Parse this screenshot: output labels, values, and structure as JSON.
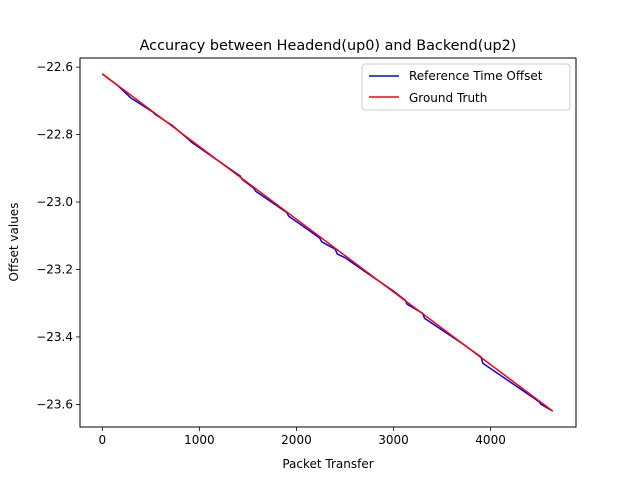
{
  "chart_data": {
    "type": "line",
    "title": "Accuracy between Headend(up0) and Backend(up2)",
    "xlabel": "Packet Transfer",
    "ylabel": "Offset values",
    "xlim": [
      -230,
      4880
    ],
    "ylim": [
      -23.667,
      -22.573
    ],
    "x_ticks": [
      0,
      1000,
      2000,
      3000,
      4000
    ],
    "x_tick_labels": [
      "0",
      "1000",
      "2000",
      "3000",
      "4000"
    ],
    "y_ticks": [
      -22.6,
      -22.8,
      -23.0,
      -23.2,
      -23.4,
      -23.6
    ],
    "y_tick_labels": [
      "−22.6",
      "−22.8",
      "−23.0",
      "−23.2",
      "−23.4",
      "−23.6"
    ],
    "grid": false,
    "legend_position": "upper right",
    "series": [
      {
        "name": "Reference Time Offset",
        "color": "#0000ff",
        "x": [
          0,
          160,
          300,
          320,
          520,
          540,
          720,
          900,
          920,
          1420,
          1440,
          1560,
          1580,
          1900,
          1920,
          2100,
          2240,
          2260,
          2400,
          2420,
          2500,
          2750,
          3000,
          3120,
          3140,
          3300,
          3320,
          3700,
          3900,
          3920,
          4500,
          4520,
          4640
        ],
        "y": [
          -22.62,
          -22.655,
          -22.693,
          -22.696,
          -22.733,
          -22.739,
          -22.773,
          -22.817,
          -22.823,
          -22.923,
          -22.933,
          -22.959,
          -22.968,
          -23.031,
          -23.042,
          -23.078,
          -23.107,
          -23.118,
          -23.14,
          -23.154,
          -23.165,
          -23.215,
          -23.264,
          -23.291,
          -23.303,
          -23.33,
          -23.345,
          -23.418,
          -23.459,
          -23.478,
          -23.592,
          -23.6,
          -23.62
        ]
      },
      {
        "name": "Ground Truth",
        "color": "#ff0000",
        "x": [
          0,
          4640
        ],
        "y": [
          -22.62,
          -23.62
        ]
      }
    ]
  }
}
